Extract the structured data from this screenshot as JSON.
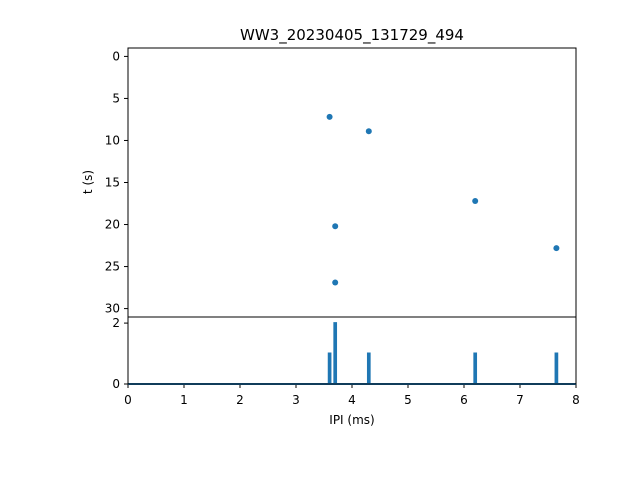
{
  "chart_data": [
    {
      "type": "scatter",
      "title": "WW3_20230405_131729_494",
      "ylabel": "t (s)",
      "xlim": [
        0,
        8
      ],
      "ylim": [
        31,
        -1
      ],
      "y_inverted": true,
      "yticks": [
        0,
        5,
        10,
        15,
        20,
        25,
        30
      ],
      "grid": false,
      "color": "#1f77b4",
      "points": [
        {
          "x": 3.6,
          "y": 7.2
        },
        {
          "x": 4.3,
          "y": 8.9
        },
        {
          "x": 6.2,
          "y": 17.2
        },
        {
          "x": 3.7,
          "y": 20.2
        },
        {
          "x": 7.65,
          "y": 22.8
        },
        {
          "x": 3.7,
          "y": 26.9
        }
      ]
    },
    {
      "type": "line",
      "xlabel": "IPI (ms)",
      "xlim": [
        0,
        8
      ],
      "ylim": [
        0,
        2.2
      ],
      "xticks": [
        0,
        1,
        2,
        3,
        4,
        5,
        6,
        7,
        8
      ],
      "yticks": [
        0,
        2
      ],
      "grid": false,
      "color": "#1f77b4",
      "spikes": [
        {
          "x": 3.6,
          "y": 1
        },
        {
          "x": 3.7,
          "y": 2
        },
        {
          "x": 4.3,
          "y": 1
        },
        {
          "x": 6.2,
          "y": 1
        },
        {
          "x": 7.65,
          "y": 1
        }
      ]
    }
  ]
}
